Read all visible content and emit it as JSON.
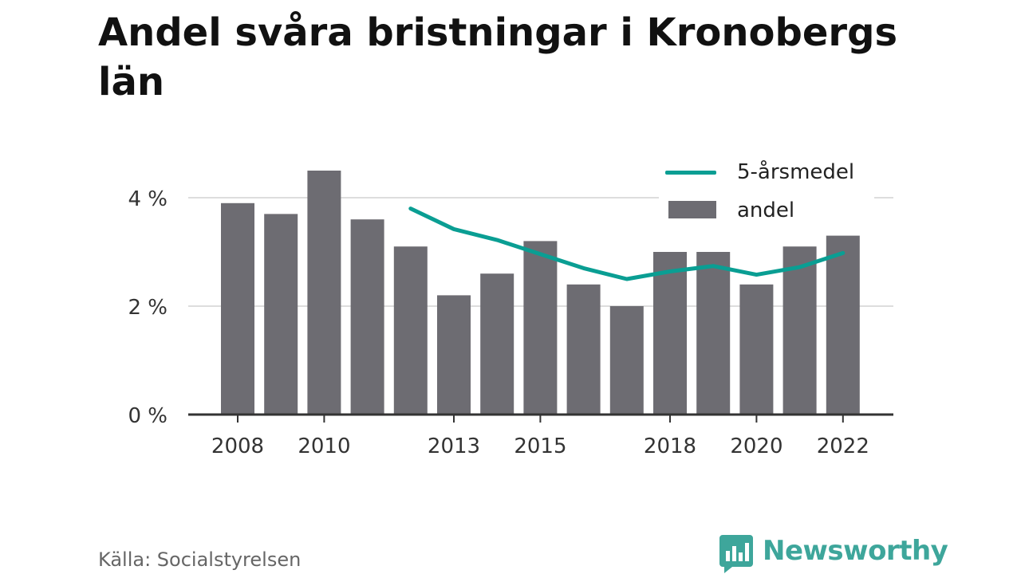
{
  "title": "Andel svåra bristningar i Kronobergs län",
  "source": "Källa: Socialstyrelsen",
  "brand": "Newsworthy",
  "colors": {
    "bars": "#6d6c72",
    "line": "#0a9e93",
    "brand": "#3ea69b",
    "grid": "#dddddd",
    "axis": "#333333"
  },
  "chart_data": {
    "type": "bar",
    "x": [
      2008,
      2009,
      2010,
      2011,
      2012,
      2013,
      2014,
      2015,
      2016,
      2017,
      2018,
      2019,
      2020,
      2021,
      2022
    ],
    "x_tick_labels": [
      "2008",
      "2010",
      "2013",
      "2015",
      "2018",
      "2020",
      "2022"
    ],
    "y_tick_labels": [
      "0 %",
      "2 %",
      "4 %"
    ],
    "y_ticks": [
      0,
      2,
      4
    ],
    "ylim": [
      0,
      4.6
    ],
    "grid": true,
    "legend_position": "top-right",
    "series": [
      {
        "name": "andel",
        "type": "bar",
        "values": [
          3.9,
          3.7,
          4.5,
          3.6,
          3.1,
          2.2,
          2.6,
          3.2,
          2.4,
          2.0,
          3.0,
          3.0,
          2.4,
          3.1,
          3.3
        ]
      },
      {
        "name": "5-årsmedel",
        "type": "line",
        "values": [
          null,
          null,
          null,
          null,
          3.8,
          3.42,
          3.22,
          2.96,
          2.7,
          2.5,
          2.64,
          2.74,
          2.58,
          2.72,
          2.98
        ]
      }
    ]
  }
}
